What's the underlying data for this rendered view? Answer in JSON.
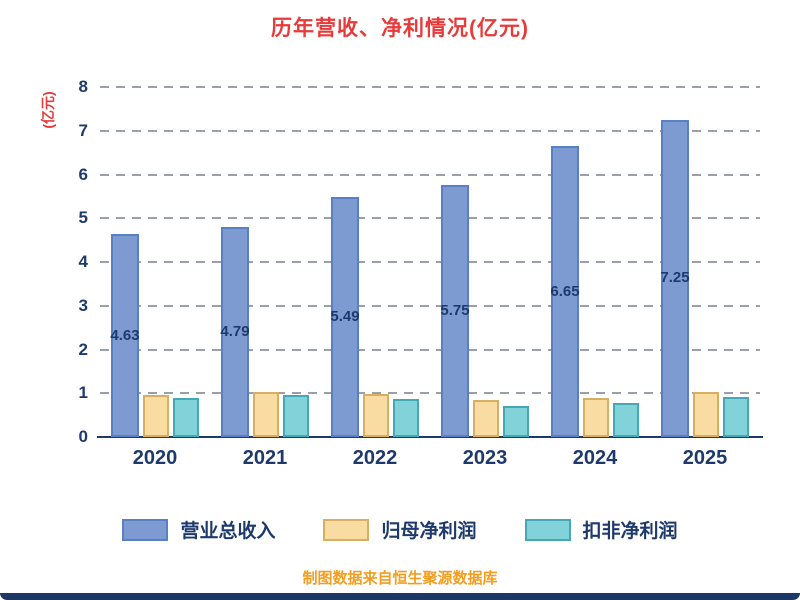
{
  "title": "历年营收、净利情况(亿元)",
  "y_axis_label": "(亿元)",
  "footer": "制图数据来自恒生聚源数据库",
  "colors": {
    "title": "#e83a3a",
    "axis": "#1e3a6d",
    "grid": "#9aa0a8",
    "footer": "#f59d1e",
    "strip": "#1d3766"
  },
  "chart_data": {
    "type": "bar",
    "title": "历年营收、净利情况(亿元)",
    "xlabel": "",
    "ylabel": "(亿元)",
    "categories": [
      "2020",
      "2021",
      "2022",
      "2023",
      "2024",
      "2025"
    ],
    "series": [
      {
        "name": "营业总收入",
        "color": "#7d9ad1",
        "border": "#5b7fc4",
        "values": [
          4.63,
          4.79,
          5.49,
          5.75,
          6.65,
          7.25
        ],
        "labels": [
          "4.63",
          "4.79",
          "5.49",
          "5.75",
          "6.65",
          "7.25"
        ]
      },
      {
        "name": "归母净利润",
        "color": "#f8dca2",
        "border": "#d8ae62",
        "values": [
          0.97,
          1.02,
          0.99,
          0.84,
          0.89,
          1.02
        ]
      },
      {
        "name": "扣非净利润",
        "color": "#82d2da",
        "border": "#45a8b5",
        "values": [
          0.9,
          0.97,
          0.87,
          0.7,
          0.78,
          0.92
        ]
      }
    ],
    "ylim": [
      0,
      8
    ],
    "yticks": [
      0,
      1,
      2,
      3,
      4,
      5,
      6,
      7,
      8
    ],
    "grid": "dashed horizontal",
    "legend_position": "bottom"
  }
}
